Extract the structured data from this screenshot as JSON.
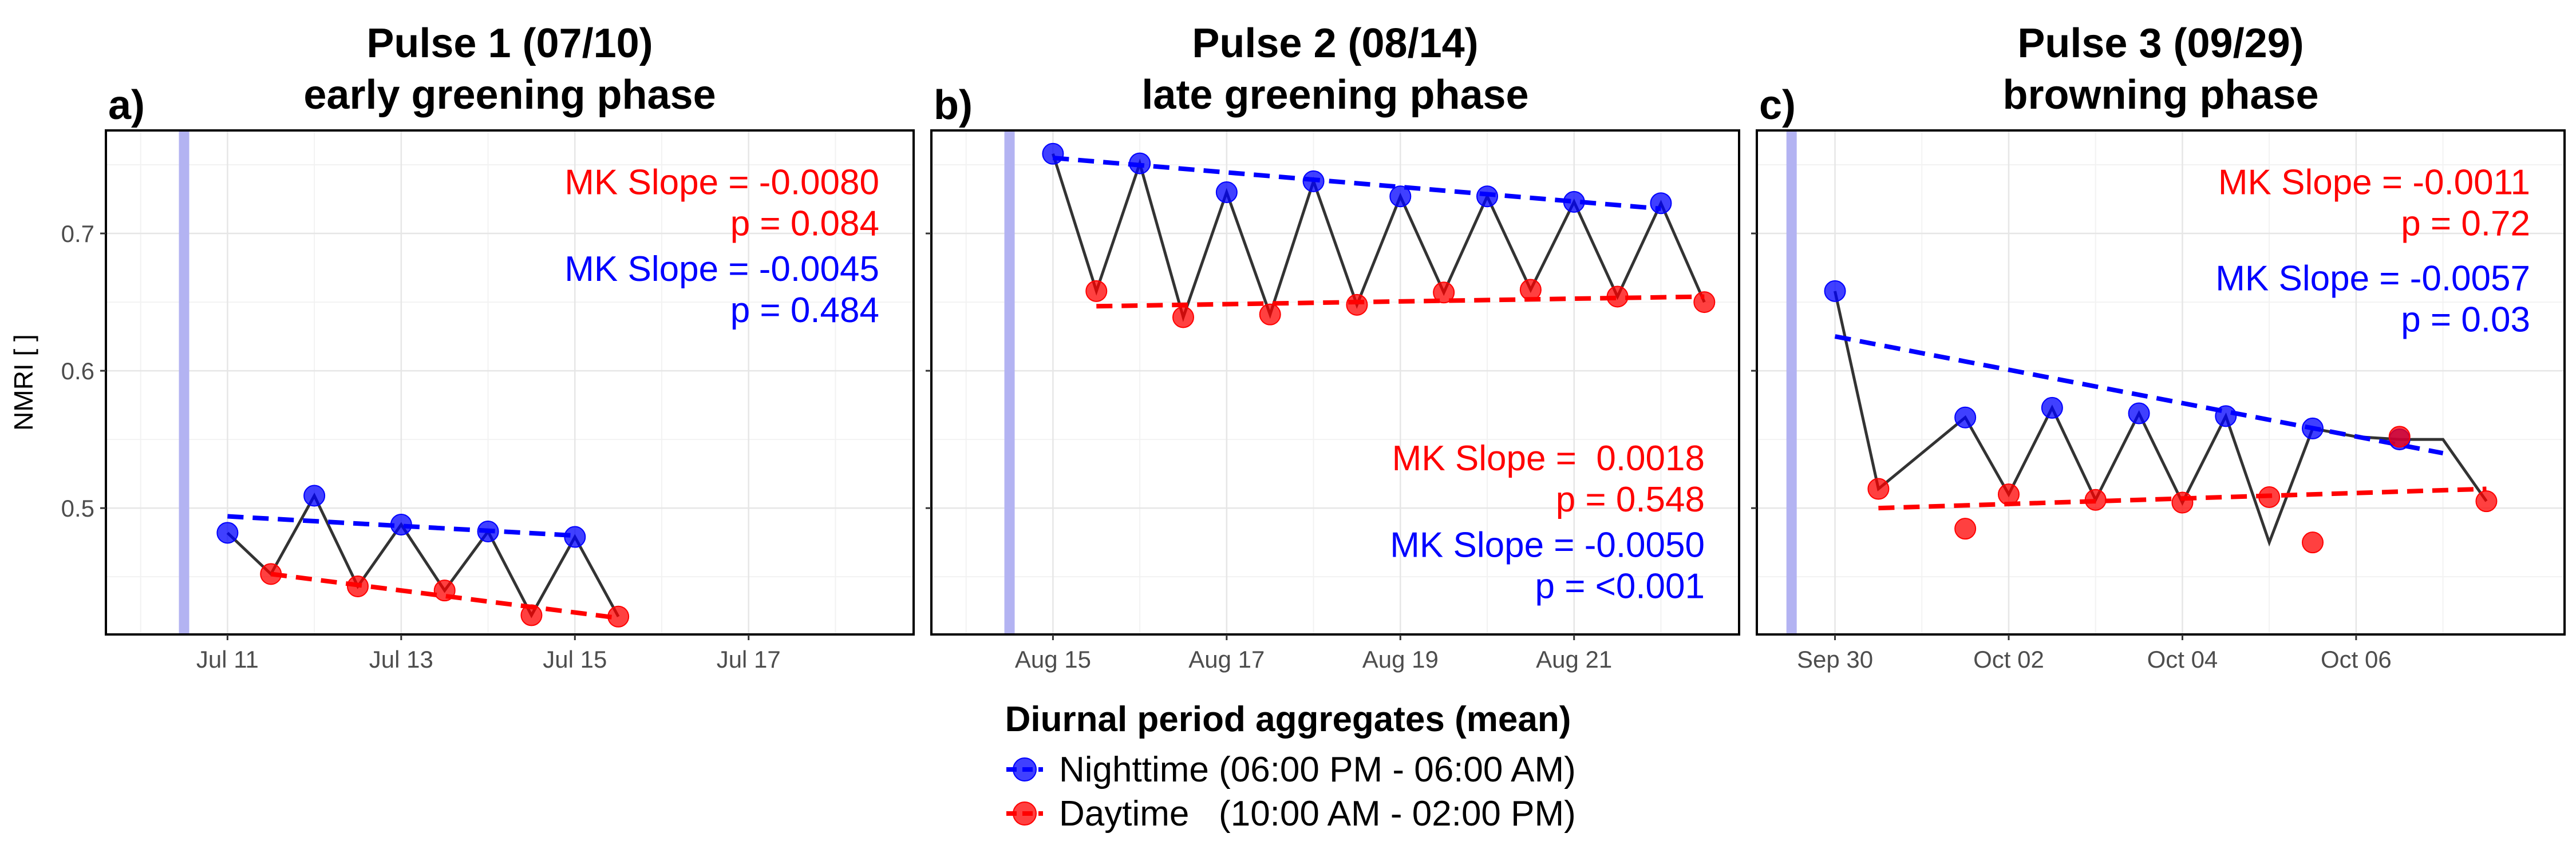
{
  "colors": {
    "night": "#0000ff",
    "day": "#ff0000",
    "connector": "#333333",
    "pulse_band": "#b3b3f2",
    "grid_major": "#e6e6e6",
    "grid_minor": "#f2f2f2",
    "stat_red": "#ff0000",
    "stat_blue": "#0000ff"
  },
  "legend": {
    "title": "Diurnal period aggregates (mean)",
    "night_label": "Nighttime (06:00 PM - 06:00 AM)",
    "day_label": "Daytime   (10:00 AM - 02:00 PM)"
  },
  "chart_data": {
    "type": "line",
    "ylabel": "NMRI [ ]",
    "ylim": [
      0.408,
      0.775
    ],
    "yticks": [
      0.5,
      0.6,
      0.7
    ],
    "ytick_labels": [
      "0.5",
      "0.6",
      "0.7"
    ],
    "panels": [
      {
        "letter": "a)",
        "title1": "Pulse 1 (07/10)",
        "title2": "early greening phase",
        "xlim": [
          -1.4,
          7.9
        ],
        "xticks": [
          0,
          2,
          4,
          6
        ],
        "xtick_labels": [
          "Jul 11",
          "Jul 13",
          "Jul 15",
          "Jul 17"
        ],
        "pulse_x": -0.5,
        "series": [
          {
            "name": "Nighttime (06:00 PM - 06:00 AM)",
            "x": [
              0,
              1,
              2,
              3,
              4
            ],
            "y": [
              0.482,
              0.509,
              0.488,
              0.483,
              0.479
            ]
          },
          {
            "name": "Daytime   (10:00 AM - 02:00 PM)",
            "x": [
              0.5,
              1.5,
              2.5,
              3.5,
              4.5
            ],
            "y": [
              0.452,
              0.443,
              0.44,
              0.422,
              0.421
            ]
          }
        ],
        "trend_night": {
          "x": [
            0,
            4
          ],
          "y": [
            0.494,
            0.48
          ]
        },
        "trend_day": {
          "x": [
            0.5,
            4.5
          ],
          "y": [
            0.452,
            0.42
          ]
        },
        "stats": [
          {
            "slope": "MK Slope = -0.0080",
            "p": "p = 0.084",
            "color": "red",
            "y": 0.7285
          },
          {
            "slope": "MK Slope = -0.0045",
            "p": "p = 0.484",
            "color": "blue",
            "y": 0.6655
          }
        ]
      },
      {
        "letter": "b)",
        "title1": "Pulse 2 (08/14)",
        "title2": "late greening phase",
        "xlim": [
          -1.4,
          7.9
        ],
        "xticks": [
          0,
          2,
          4,
          6
        ],
        "xtick_labels": [
          "Aug 15",
          "Aug 17",
          "Aug 19",
          "Aug 21"
        ],
        "pulse_x": -0.5,
        "series": [
          {
            "name": "Nighttime (06:00 PM - 06:00 AM)",
            "x": [
              0,
              1,
              2,
              3,
              4,
              5,
              6,
              7
            ],
            "y": [
              0.758,
              0.751,
              0.73,
              0.738,
              0.727,
              0.727,
              0.723,
              0.722
            ]
          },
          {
            "name": "Daytime   (10:00 AM - 02:00 PM)",
            "x": [
              0.5,
              1.5,
              2.5,
              3.5,
              4.5,
              5.5,
              6.5,
              7.5
            ],
            "y": [
              0.658,
              0.639,
              0.641,
              0.648,
              0.657,
              0.659,
              0.654,
              0.65
            ]
          }
        ],
        "trend_night": {
          "x": [
            0,
            7
          ],
          "y": [
            0.755,
            0.718
          ]
        },
        "trend_day": {
          "x": [
            0.5,
            7.5
          ],
          "y": [
            0.647,
            0.654
          ]
        },
        "stats": [
          {
            "slope": "MK Slope =  0.0018",
            "p": "p = 0.548",
            "color": "red",
            "y": 0.5275
          },
          {
            "slope": "MK Slope = -0.0050",
            "p": "p = <0.001",
            "color": "blue",
            "y": 0.4645
          }
        ]
      },
      {
        "letter": "c)",
        "title1": "Pulse 3 (09/29)",
        "title2": "browning phase",
        "xlim": [
          -0.9,
          8.4
        ],
        "xticks": [
          0,
          2,
          4,
          6
        ],
        "xtick_labels": [
          "Sep 30",
          "Oct 02",
          "Oct 04",
          "Oct 06"
        ],
        "pulse_x": -0.5,
        "series": [
          {
            "name": "Nighttime (06:00 PM - 06:00 AM)",
            "x": [
              0,
              1.5,
              2.5,
              3.5,
              4.5,
              5.5,
              6.5
            ],
            "y": [
              0.658,
              0.566,
              0.573,
              0.569,
              0.567,
              0.558,
              0.55
            ]
          },
          {
            "name": "Daytime   (10:00 AM - 02:00 PM)",
            "x": [
              0.5,
              1.5,
              2,
              3,
              4,
              5,
              5.5,
              6.5,
              7.5
            ],
            "y": [
              0.514,
              0.485,
              0.51,
              0.506,
              0.504,
              0.508,
              0.475,
              0.552,
              0.505
            ]
          }
        ],
        "connector": {
          "x": [
            0,
            0.5,
            1.5,
            2,
            2.5,
            3,
            3.5,
            4,
            4.5,
            5,
            5.5,
            6,
            6.5,
            7,
            7.5
          ],
          "y": [
            0.658,
            0.514,
            0.566,
            0.51,
            0.573,
            0.506,
            0.569,
            0.504,
            0.567,
            0.475,
            0.558,
            0.552,
            0.55,
            0.55,
            0.505
          ]
        },
        "trend_night": {
          "x": [
            0,
            7
          ],
          "y": [
            0.625,
            0.54
          ]
        },
        "trend_day": {
          "x": [
            0.5,
            7.5
          ],
          "y": [
            0.5,
            0.514
          ]
        },
        "stats": [
          {
            "slope": "MK Slope = -0.0011",
            "p": "p = 0.72",
            "color": "red",
            "y": 0.7285
          },
          {
            "slope": "MK Slope = -0.0057",
            "p": "p = 0.03",
            "color": "blue",
            "y": 0.6585
          }
        ]
      }
    ]
  }
}
